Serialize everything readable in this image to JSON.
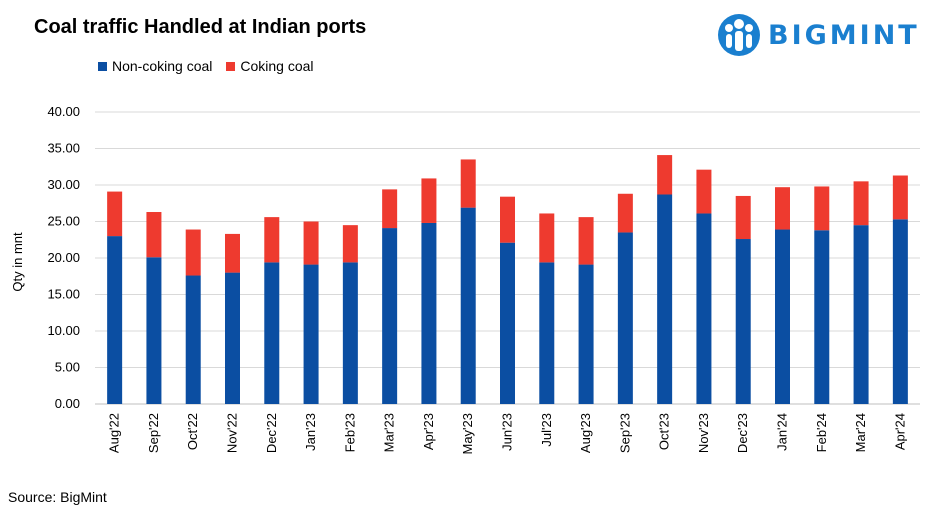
{
  "title": "Coal traffic Handled at Indian ports",
  "logo": {
    "text": "BIGMINT",
    "color": "#1a7fcf"
  },
  "source": "Source: BigMint",
  "colors": {
    "non_coking": "#0b4ea2",
    "coking": "#ee3a2f",
    "grid": "#d9d9d9"
  },
  "chart_data": {
    "type": "bar",
    "stacked": true,
    "title": "Coal traffic Handled at Indian ports",
    "ylabel": "Qty in mnt",
    "xlabel": "",
    "ylim": [
      0,
      40
    ],
    "yticks": [
      "0.00",
      "5.00",
      "10.00",
      "15.00",
      "20.00",
      "25.00",
      "30.00",
      "35.00",
      "40.00"
    ],
    "legend_position": "top-left",
    "categories": [
      "Aug'22",
      "Sep'22",
      "Oct'22",
      "Nov'22",
      "Dec'22",
      "Jan'23",
      "Feb'23",
      "Mar'23",
      "Apr'23",
      "May'23",
      "Jun'23",
      "Jul'23",
      "Aug'23",
      "Sep'23",
      "Oct'23",
      "Nov'23",
      "Dec'23",
      "Jan'24",
      "Feb'24",
      "Mar'24",
      "Apr'24"
    ],
    "series": [
      {
        "name": "Non-coking coal",
        "color": "#0b4ea2",
        "values": [
          23.0,
          20.1,
          17.6,
          18.0,
          19.4,
          19.1,
          19.4,
          24.1,
          24.8,
          26.9,
          22.1,
          19.4,
          19.1,
          23.5,
          28.7,
          26.1,
          22.6,
          23.9,
          23.8,
          24.5,
          25.3
        ]
      },
      {
        "name": "Coking coal",
        "color": "#ee3a2f",
        "values": [
          6.1,
          6.2,
          6.3,
          5.3,
          6.2,
          5.9,
          5.1,
          5.3,
          6.1,
          6.6,
          6.3,
          6.7,
          6.5,
          5.3,
          5.4,
          6.0,
          5.9,
          5.8,
          6.0,
          6.0,
          6.0
        ]
      }
    ]
  }
}
